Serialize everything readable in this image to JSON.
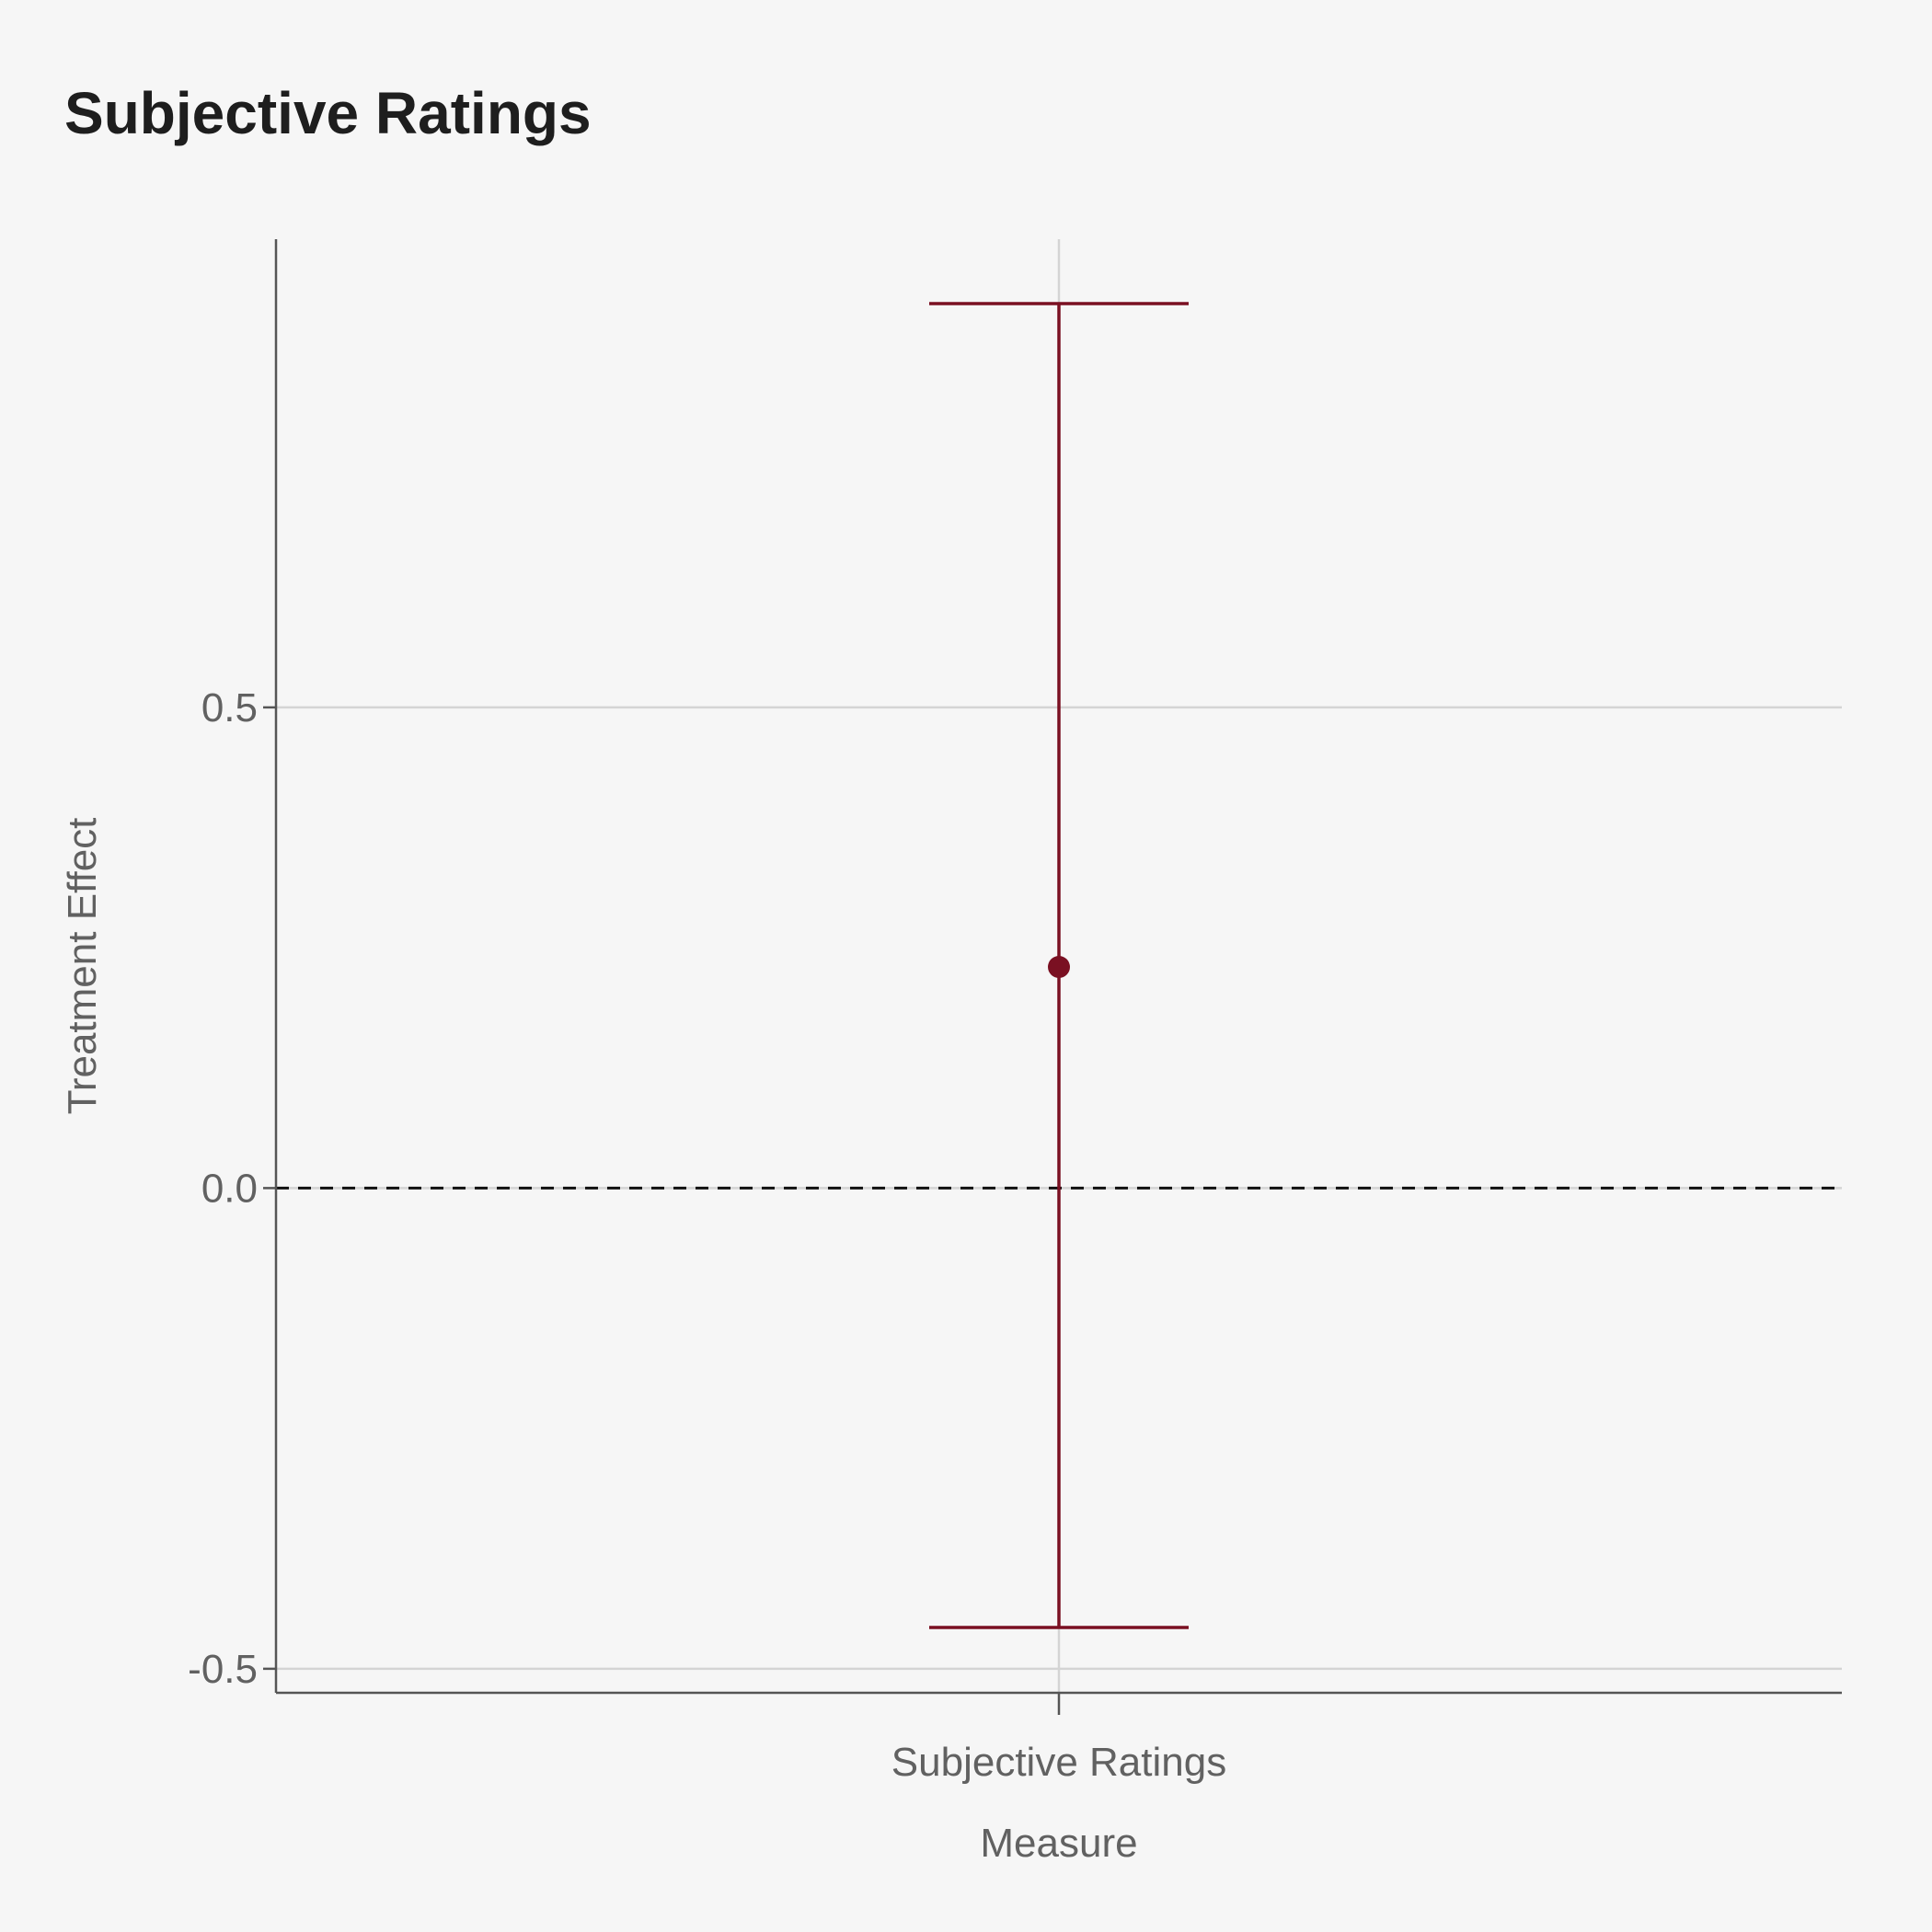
{
  "chart_data": {
    "type": "errorbar",
    "title": "Subjective Ratings",
    "xlabel": "Measure",
    "ylabel": "Treatment Effect",
    "categories": [
      "Subjective Ratings"
    ],
    "points": [
      {
        "category": "Subjective Ratings",
        "estimate": 0.23,
        "lower": -0.457,
        "upper": 0.92
      }
    ],
    "ylim": [
      -0.525,
      0.987
    ],
    "yticks": [
      -0.5,
      0.0,
      0.5
    ],
    "ytick_labels": [
      "-0.5",
      "0.0",
      "0.5"
    ],
    "reference_line": {
      "y": 0,
      "style": "dashed"
    },
    "grid": true,
    "colors": {
      "series": "#7a1022",
      "reference": "#111111",
      "grid": "#d4d4d4",
      "axis": "#555555",
      "background": "#f6f6f6"
    }
  }
}
